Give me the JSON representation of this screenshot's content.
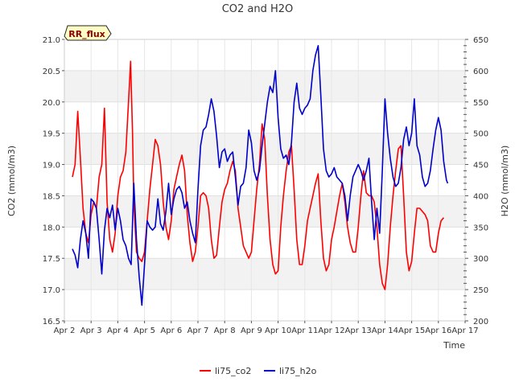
{
  "chart_data": {
    "type": "line",
    "title": "CO2 and H2O",
    "xlabel": "Time",
    "ylabel": "CO2 (mmol/m3)",
    "y2label": "H2O (mmol/m3)",
    "badge": "RR_flux",
    "xlim": [
      2.0,
      17.0
    ],
    "ylim": [
      16.5,
      21.0
    ],
    "y2lim": [
      200,
      650
    ],
    "x_ticks": [
      {
        "value": 2,
        "label": "Apr 2"
      },
      {
        "value": 3,
        "label": "Apr 3"
      },
      {
        "value": 4,
        "label": "Apr 4"
      },
      {
        "value": 5,
        "label": "Apr 5"
      },
      {
        "value": 6,
        "label": "Apr 6"
      },
      {
        "value": 7,
        "label": "Apr 7"
      },
      {
        "value": 8,
        "label": "Apr 8"
      },
      {
        "value": 9,
        "label": "Apr 9"
      },
      {
        "value": 10,
        "label": "Apr 10"
      },
      {
        "value": 11,
        "label": "Apr 11"
      },
      {
        "value": 12,
        "label": "Apr 12"
      },
      {
        "value": 13,
        "label": "Apr 13"
      },
      {
        "value": 14,
        "label": "Apr 14"
      },
      {
        "value": 15,
        "label": "Apr 15"
      },
      {
        "value": 16,
        "label": "Apr 16"
      },
      {
        "value": 17,
        "label": "Apr 17"
      }
    ],
    "y_ticks": [
      "16.5",
      "17.0",
      "17.5",
      "18.0",
      "18.5",
      "19.0",
      "19.5",
      "20.0",
      "20.5",
      "21.0"
    ],
    "y2_ticks": [
      "200",
      "250",
      "300",
      "350",
      "400",
      "450",
      "500",
      "550",
      "600",
      "650"
    ],
    "legend_position": "bottom-center",
    "series": [
      {
        "name": "li75_co2",
        "axis": "left",
        "color": "#ff0000",
        "points": [
          [
            2.3,
            18.8
          ],
          [
            2.4,
            19.0
          ],
          [
            2.5,
            19.85
          ],
          [
            2.6,
            19.1
          ],
          [
            2.7,
            18.3
          ],
          [
            2.8,
            17.9
          ],
          [
            2.9,
            17.75
          ],
          [
            3.0,
            18.2
          ],
          [
            3.1,
            18.4
          ],
          [
            3.2,
            18.3
          ],
          [
            3.3,
            18.8
          ],
          [
            3.4,
            19.0
          ],
          [
            3.5,
            19.9
          ],
          [
            3.6,
            18.4
          ],
          [
            3.7,
            17.8
          ],
          [
            3.8,
            17.6
          ],
          [
            3.9,
            17.9
          ],
          [
            4.0,
            18.5
          ],
          [
            4.1,
            18.8
          ],
          [
            4.2,
            18.9
          ],
          [
            4.3,
            19.2
          ],
          [
            4.4,
            20.0
          ],
          [
            4.48,
            20.65
          ],
          [
            4.55,
            19.5
          ],
          [
            4.6,
            18.4
          ],
          [
            4.7,
            17.6
          ],
          [
            4.8,
            17.5
          ],
          [
            4.9,
            17.45
          ],
          [
            5.0,
            17.6
          ],
          [
            5.1,
            18.1
          ],
          [
            5.2,
            18.6
          ],
          [
            5.3,
            19.0
          ],
          [
            5.4,
            19.4
          ],
          [
            5.5,
            19.3
          ],
          [
            5.6,
            19.0
          ],
          [
            5.7,
            18.4
          ],
          [
            5.8,
            18.0
          ],
          [
            5.9,
            17.8
          ],
          [
            6.0,
            18.1
          ],
          [
            6.1,
            18.6
          ],
          [
            6.2,
            18.8
          ],
          [
            6.3,
            19.0
          ],
          [
            6.4,
            19.15
          ],
          [
            6.5,
            18.9
          ],
          [
            6.6,
            18.2
          ],
          [
            6.7,
            17.75
          ],
          [
            6.8,
            17.45
          ],
          [
            6.9,
            17.6
          ],
          [
            7.0,
            18.0
          ],
          [
            7.1,
            18.5
          ],
          [
            7.2,
            18.55
          ],
          [
            7.3,
            18.5
          ],
          [
            7.4,
            18.3
          ],
          [
            7.5,
            17.8
          ],
          [
            7.6,
            17.5
          ],
          [
            7.7,
            17.55
          ],
          [
            7.8,
            18.0
          ],
          [
            7.9,
            18.4
          ],
          [
            8.0,
            18.6
          ],
          [
            8.1,
            18.7
          ],
          [
            8.2,
            18.9
          ],
          [
            8.3,
            19.05
          ],
          [
            8.4,
            18.9
          ],
          [
            8.5,
            18.3
          ],
          [
            8.6,
            18.0
          ],
          [
            8.7,
            17.7
          ],
          [
            8.8,
            17.6
          ],
          [
            8.9,
            17.5
          ],
          [
            9.0,
            17.6
          ],
          [
            9.1,
            18.1
          ],
          [
            9.2,
            18.6
          ],
          [
            9.3,
            19.0
          ],
          [
            9.4,
            19.65
          ],
          [
            9.5,
            19.4
          ],
          [
            9.6,
            18.5
          ],
          [
            9.7,
            17.8
          ],
          [
            9.8,
            17.4
          ],
          [
            9.9,
            17.25
          ],
          [
            10.0,
            17.3
          ],
          [
            10.1,
            18.0
          ],
          [
            10.2,
            18.5
          ],
          [
            10.3,
            18.9
          ],
          [
            10.4,
            19.2
          ],
          [
            10.5,
            19.3
          ],
          [
            10.6,
            18.6
          ],
          [
            10.7,
            17.8
          ],
          [
            10.8,
            17.4
          ],
          [
            10.9,
            17.4
          ],
          [
            11.0,
            17.7
          ],
          [
            11.1,
            18.1
          ],
          [
            11.2,
            18.3
          ],
          [
            11.3,
            18.5
          ],
          [
            11.4,
            18.7
          ],
          [
            11.5,
            18.85
          ],
          [
            11.6,
            18.1
          ],
          [
            11.7,
            17.5
          ],
          [
            11.8,
            17.3
          ],
          [
            11.9,
            17.4
          ],
          [
            12.0,
            17.8
          ],
          [
            12.1,
            18.0
          ],
          [
            12.2,
            18.25
          ],
          [
            12.3,
            18.5
          ],
          [
            12.4,
            18.7
          ],
          [
            12.5,
            18.4
          ],
          [
            12.6,
            18.0
          ],
          [
            12.7,
            17.75
          ],
          [
            12.8,
            17.6
          ],
          [
            12.9,
            17.6
          ],
          [
            13.0,
            18.0
          ],
          [
            13.1,
            18.5
          ],
          [
            13.2,
            18.9
          ],
          [
            13.3,
            18.55
          ],
          [
            13.4,
            18.5
          ],
          [
            13.5,
            18.5
          ],
          [
            13.6,
            18.4
          ],
          [
            13.7,
            18.0
          ],
          [
            13.8,
            17.4
          ],
          [
            13.9,
            17.1
          ],
          [
            14.0,
            17.0
          ],
          [
            14.1,
            17.4
          ],
          [
            14.2,
            18.0
          ],
          [
            14.3,
            18.5
          ],
          [
            14.4,
            18.9
          ],
          [
            14.5,
            19.25
          ],
          [
            14.6,
            19.3
          ],
          [
            14.7,
            18.5
          ],
          [
            14.8,
            17.6
          ],
          [
            14.9,
            17.3
          ],
          [
            15.0,
            17.45
          ],
          [
            15.1,
            17.9
          ],
          [
            15.2,
            18.3
          ],
          [
            15.3,
            18.3
          ],
          [
            15.4,
            18.25
          ],
          [
            15.5,
            18.2
          ],
          [
            15.6,
            18.1
          ],
          [
            15.7,
            17.7
          ],
          [
            15.8,
            17.6
          ],
          [
            15.9,
            17.6
          ],
          [
            16.0,
            17.9
          ],
          [
            16.1,
            18.1
          ],
          [
            16.2,
            18.15
          ]
        ]
      },
      {
        "name": "li75_h2o",
        "axis": "right",
        "color": "#0000cc",
        "points": [
          [
            2.3,
            315
          ],
          [
            2.4,
            305
          ],
          [
            2.5,
            285
          ],
          [
            2.6,
            330
          ],
          [
            2.7,
            360
          ],
          [
            2.8,
            340
          ],
          [
            2.9,
            300
          ],
          [
            3.0,
            395
          ],
          [
            3.1,
            390
          ],
          [
            3.2,
            380
          ],
          [
            3.3,
            330
          ],
          [
            3.4,
            275
          ],
          [
            3.5,
            345
          ],
          [
            3.6,
            380
          ],
          [
            3.7,
            365
          ],
          [
            3.8,
            385
          ],
          [
            3.9,
            345
          ],
          [
            4.0,
            380
          ],
          [
            4.1,
            360
          ],
          [
            4.2,
            330
          ],
          [
            4.3,
            320
          ],
          [
            4.4,
            300
          ],
          [
            4.5,
            290
          ],
          [
            4.6,
            420
          ],
          [
            4.7,
            330
          ],
          [
            4.8,
            270
          ],
          [
            4.9,
            225
          ],
          [
            5.0,
            290
          ],
          [
            5.1,
            360
          ],
          [
            5.2,
            350
          ],
          [
            5.3,
            345
          ],
          [
            5.4,
            350
          ],
          [
            5.5,
            395
          ],
          [
            5.6,
            355
          ],
          [
            5.7,
            345
          ],
          [
            5.8,
            375
          ],
          [
            5.9,
            420
          ],
          [
            6.0,
            370
          ],
          [
            6.1,
            395
          ],
          [
            6.2,
            410
          ],
          [
            6.3,
            415
          ],
          [
            6.4,
            405
          ],
          [
            6.5,
            380
          ],
          [
            6.6,
            390
          ],
          [
            6.7,
            360
          ],
          [
            6.8,
            340
          ],
          [
            6.9,
            325
          ],
          [
            7.0,
            410
          ],
          [
            7.1,
            480
          ],
          [
            7.2,
            505
          ],
          [
            7.3,
            510
          ],
          [
            7.4,
            530
          ],
          [
            7.5,
            555
          ],
          [
            7.6,
            535
          ],
          [
            7.7,
            495
          ],
          [
            7.8,
            445
          ],
          [
            7.9,
            470
          ],
          [
            8.0,
            475
          ],
          [
            8.1,
            455
          ],
          [
            8.2,
            465
          ],
          [
            8.3,
            470
          ],
          [
            8.4,
            430
          ],
          [
            8.5,
            385
          ],
          [
            8.6,
            415
          ],
          [
            8.7,
            420
          ],
          [
            8.8,
            445
          ],
          [
            8.9,
            505
          ],
          [
            9.0,
            485
          ],
          [
            9.1,
            440
          ],
          [
            9.2,
            425
          ],
          [
            9.3,
            440
          ],
          [
            9.4,
            480
          ],
          [
            9.5,
            515
          ],
          [
            9.6,
            550
          ],
          [
            9.7,
            575
          ],
          [
            9.8,
            565
          ],
          [
            9.9,
            600
          ],
          [
            10.0,
            525
          ],
          [
            10.1,
            475
          ],
          [
            10.2,
            460
          ],
          [
            10.3,
            465
          ],
          [
            10.4,
            450
          ],
          [
            10.5,
            485
          ],
          [
            10.6,
            550
          ],
          [
            10.7,
            580
          ],
          [
            10.8,
            540
          ],
          [
            10.9,
            530
          ],
          [
            11.0,
            540
          ],
          [
            11.1,
            545
          ],
          [
            11.2,
            555
          ],
          [
            11.3,
            600
          ],
          [
            11.4,
            625
          ],
          [
            11.5,
            640
          ],
          [
            11.6,
            560
          ],
          [
            11.7,
            475
          ],
          [
            11.8,
            440
          ],
          [
            11.9,
            430
          ],
          [
            12.0,
            435
          ],
          [
            12.1,
            445
          ],
          [
            12.2,
            430
          ],
          [
            12.3,
            425
          ],
          [
            12.4,
            420
          ],
          [
            12.5,
            400
          ],
          [
            12.6,
            360
          ],
          [
            12.7,
            400
          ],
          [
            12.8,
            430
          ],
          [
            12.9,
            440
          ],
          [
            13.0,
            450
          ],
          [
            13.1,
            440
          ],
          [
            13.2,
            425
          ],
          [
            13.3,
            440
          ],
          [
            13.4,
            460
          ],
          [
            13.5,
            390
          ],
          [
            13.6,
            330
          ],
          [
            13.7,
            380
          ],
          [
            13.8,
            340
          ],
          [
            13.9,
            440
          ],
          [
            14.0,
            555
          ],
          [
            14.1,
            500
          ],
          [
            14.2,
            460
          ],
          [
            14.3,
            430
          ],
          [
            14.4,
            415
          ],
          [
            14.5,
            420
          ],
          [
            14.6,
            445
          ],
          [
            14.7,
            490
          ],
          [
            14.8,
            510
          ],
          [
            14.9,
            480
          ],
          [
            15.0,
            500
          ],
          [
            15.1,
            555
          ],
          [
            15.2,
            480
          ],
          [
            15.3,
            465
          ],
          [
            15.4,
            430
          ],
          [
            15.5,
            415
          ],
          [
            15.6,
            420
          ],
          [
            15.7,
            440
          ],
          [
            15.8,
            475
          ],
          [
            15.9,
            505
          ],
          [
            16.0,
            525
          ],
          [
            16.1,
            505
          ],
          [
            16.2,
            455
          ],
          [
            16.3,
            425
          ],
          [
            16.35,
            420
          ]
        ]
      }
    ]
  }
}
